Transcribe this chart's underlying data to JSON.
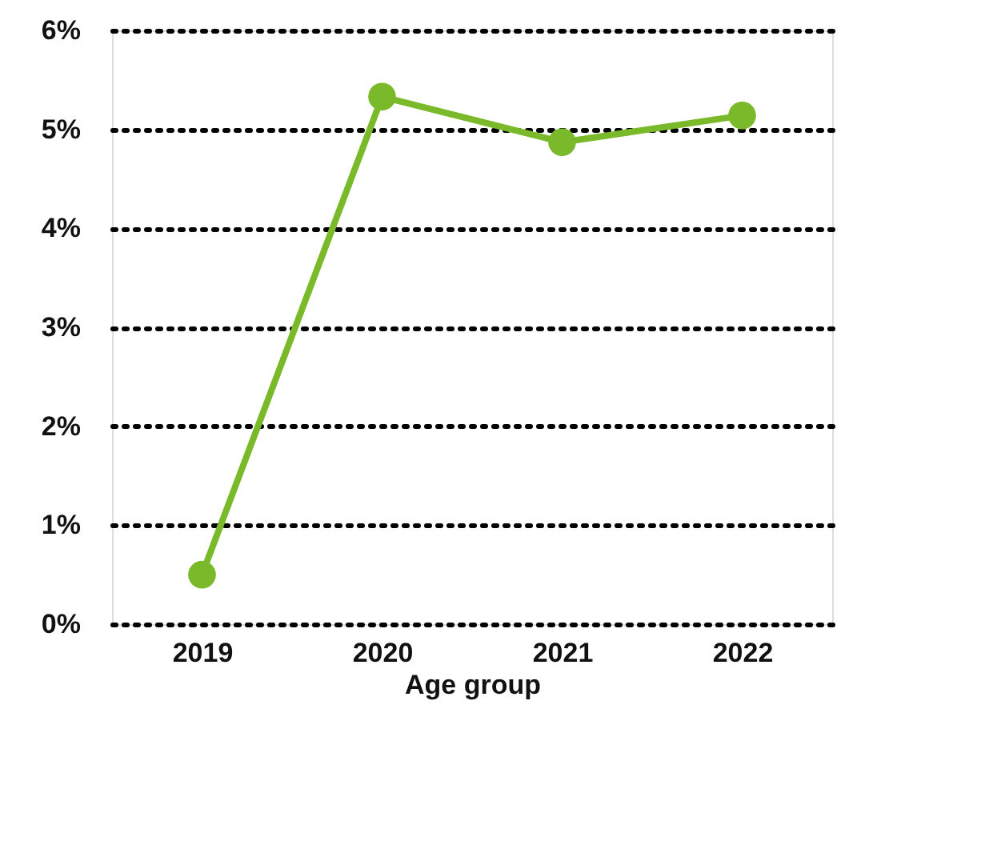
{
  "chart_data": {
    "type": "line",
    "xlabel": "Age group",
    "categories": [
      "2019",
      "2020",
      "2021",
      "2022"
    ],
    "series": [
      {
        "color": "#7ab929",
        "values": [
          0.5,
          5.33,
          4.87,
          5.14
        ]
      }
    ],
    "ylim": [
      0,
      6
    ],
    "yticks": [
      {
        "value": 0,
        "label": "0%"
      },
      {
        "value": 1,
        "label": "1%"
      },
      {
        "value": 2,
        "label": "2%"
      },
      {
        "value": 3,
        "label": "3%"
      },
      {
        "value": 4,
        "label": "4%"
      },
      {
        "value": 5,
        "label": "5%"
      },
      {
        "value": 6,
        "label": "6%"
      }
    ],
    "grid": "y",
    "marker": "circle",
    "line_style": "solid",
    "legend": false
  }
}
